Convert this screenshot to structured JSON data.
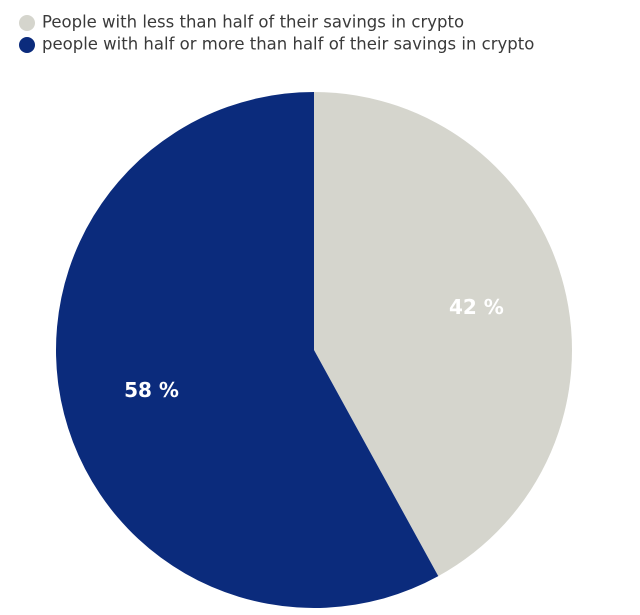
{
  "chart_data": {
    "type": "pie",
    "categories": [
      "People with less than half of their savings in crypto",
      "people with half or more than half of their savings in crypto"
    ],
    "values": [
      42,
      58
    ],
    "value_labels": [
      "42 %",
      "58 %"
    ],
    "colors": [
      "#d5d5cd",
      "#0b2b7c"
    ]
  }
}
